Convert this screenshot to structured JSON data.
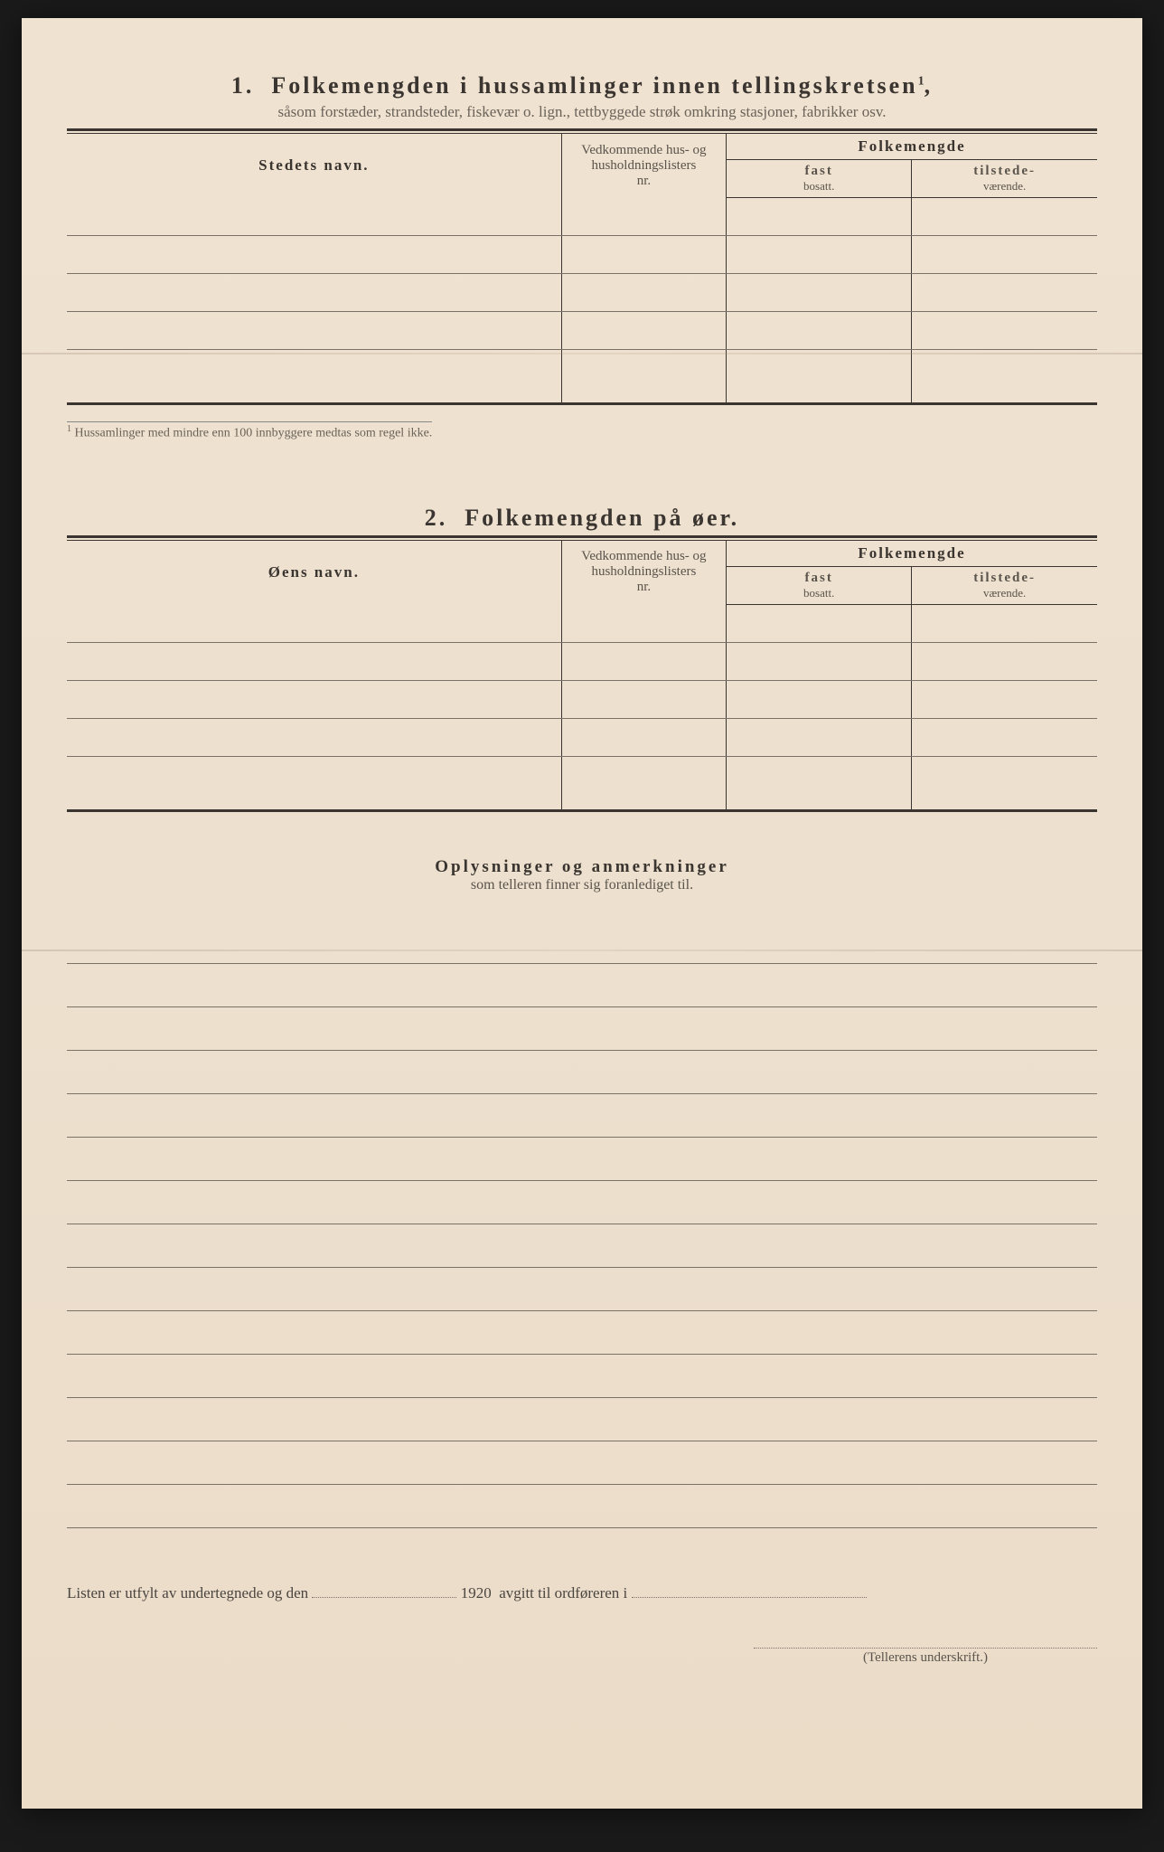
{
  "section1": {
    "number": "1.",
    "title": "Folkemengden i hussamlinger innen tellingskretsen",
    "sup": "1",
    "subtitle": "såsom forstæder, strandsteder, fiskevær o. lign., tettbyggede strøk omkring stasjoner, fabrikker osv.",
    "col_name": "Stedets navn.",
    "col_ref_l1": "Vedkommende hus- og",
    "col_ref_l2": "husholdningslisters",
    "col_ref_l3": "nr.",
    "col_pop": "Folkemengde",
    "col_fast_l1": "fast",
    "col_fast_l2": "bosatt.",
    "col_til_l1": "tilstede-",
    "col_til_l2": "værende.",
    "footnote": "Hussamlinger med mindre enn 100 innbyggere medtas som regel ikke."
  },
  "section2": {
    "number": "2.",
    "title": "Folkemengden på øer.",
    "col_name": "Øens navn.",
    "col_ref_l1": "Vedkommende hus- og",
    "col_ref_l2": "husholdningslisters",
    "col_ref_l3": "nr.",
    "col_pop": "Folkemengde",
    "col_fast_l1": "fast",
    "col_fast_l2": "bosatt.",
    "col_til_l1": "tilstede-",
    "col_til_l2": "værende."
  },
  "section3": {
    "title": "Oplysninger og anmerkninger",
    "subtitle": "som telleren finner sig foranlediget til."
  },
  "bottom": {
    "prefix": "Listen er utfylt av undertegnede og den",
    "year": "1920",
    "mid": "avgitt til ordføreren i",
    "signature_label": "(Tellerens underskrift.)"
  },
  "style": {
    "row_count_s1": 5,
    "row_count_s2": 5,
    "ruled_lines": 14
  }
}
